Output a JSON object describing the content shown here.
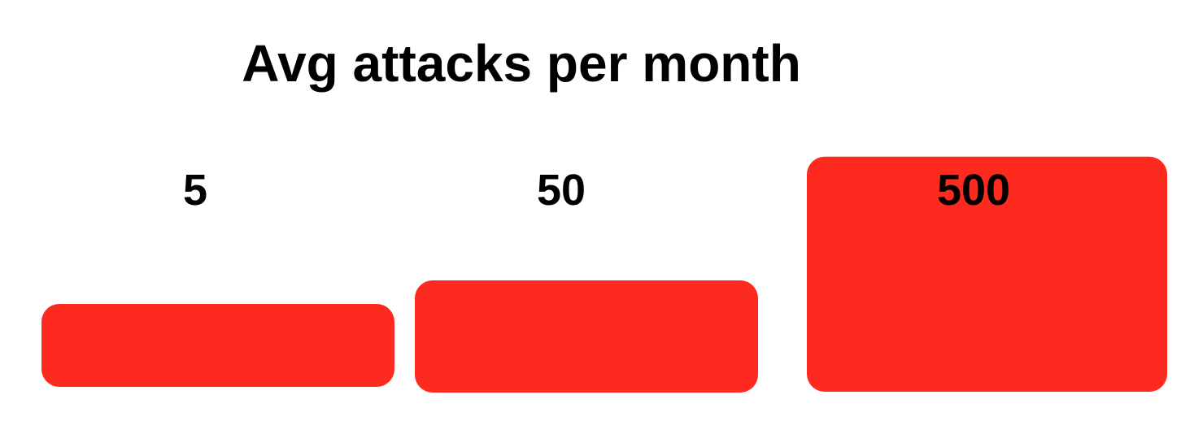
{
  "chart_data": {
    "type": "bar",
    "title": "Avg attacks per month",
    "categories": [
      "",
      "",
      ""
    ],
    "values": [
      5,
      50,
      500
    ],
    "data_labels": [
      "5",
      "50",
      "500"
    ],
    "bar_color": "#fc2a1f",
    "scale": "log",
    "grid": false,
    "legend": "none"
  }
}
